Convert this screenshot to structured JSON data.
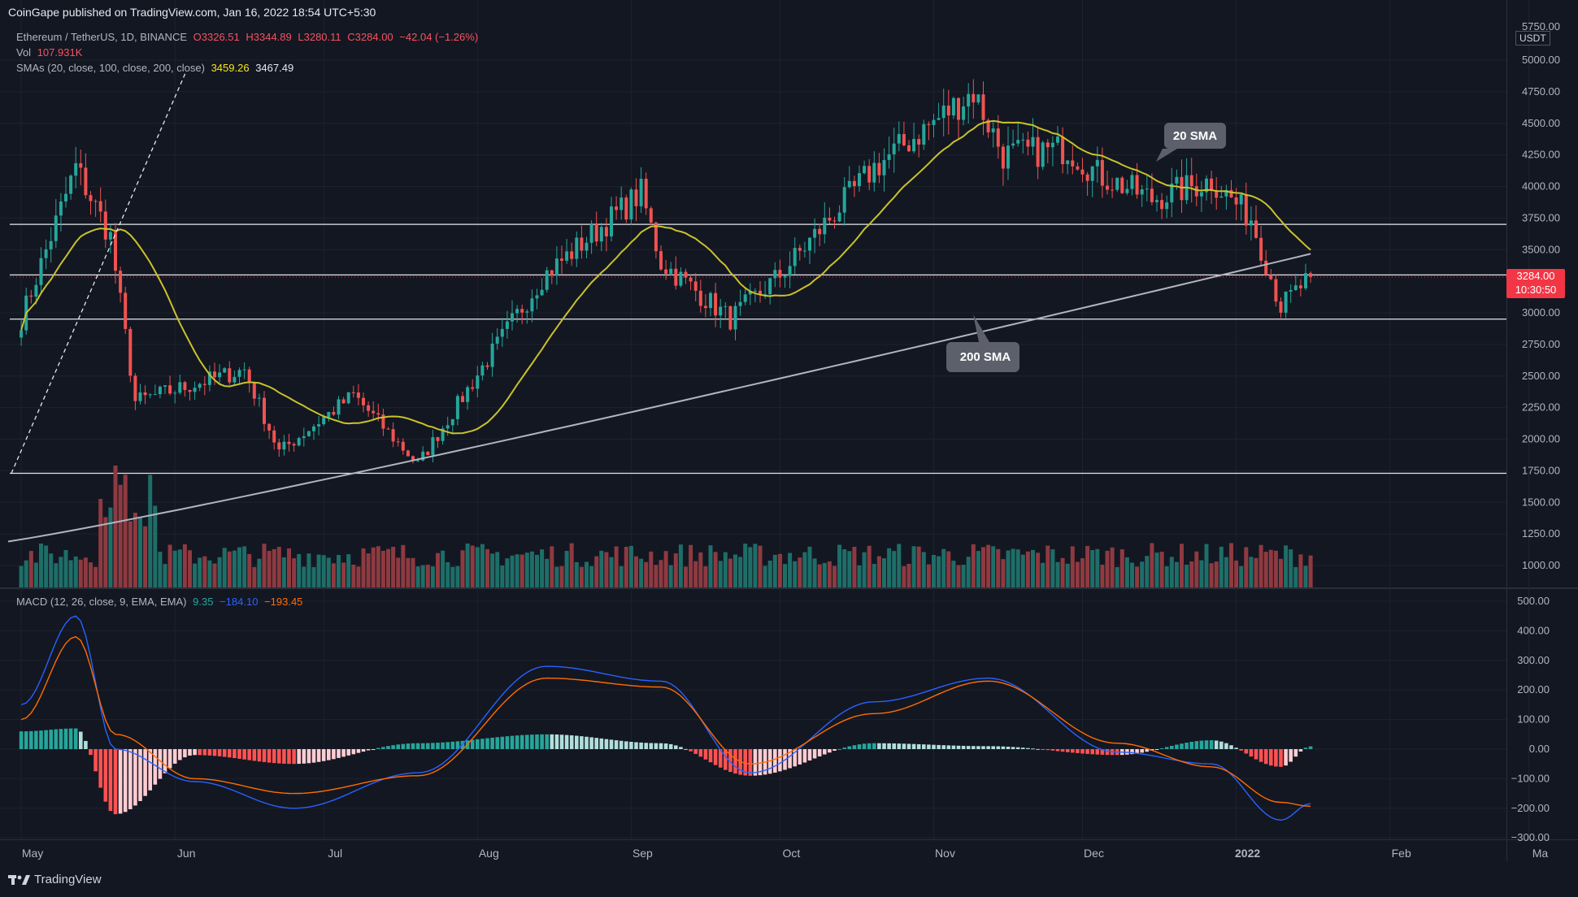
{
  "header": {
    "publisher": "CoinGape published on TradingView.com, Jan 16, 2022 18:54 UTC+5:30"
  },
  "legend": {
    "symbol": "Ethereum / TetherUS, 1D, BINANCE",
    "open": "O3326.51",
    "high": "H3344.89",
    "low": "L3280.11",
    "close": "C3284.00",
    "change": "−42.04 (−1.26%)",
    "vol_label": "Vol",
    "vol_value": "107.931K",
    "sma_label": "SMAs (20, close, 100, close, 200, close)",
    "sma20_value": "3459.26",
    "sma200_value": "3467.49",
    "macd_label": "MACD (12, 26, close, 9, EMA, EMA)",
    "macd_hist": "9.35",
    "macd_line": "−184.10",
    "macd_signal": "−193.45"
  },
  "price_axis": {
    "currency": "USDT",
    "current_price": "3284.00",
    "countdown": "10:30:50",
    "ticks": [
      "5750.00",
      "5000.00",
      "4750.00",
      "4500.00",
      "4250.00",
      "4000.00",
      "3750.00",
      "3500.00",
      "3000.00",
      "2750.00",
      "2500.00",
      "2250.00",
      "2000.00",
      "1750.00",
      "1500.00",
      "1250.00",
      "1000.00"
    ]
  },
  "macd_axis": {
    "ticks": [
      "500.00",
      "400.00",
      "300.00",
      "200.00",
      "100.00",
      "0.00",
      "−100.00",
      "−200.00",
      "−300.00"
    ]
  },
  "time_axis": {
    "labels": [
      "May",
      "Jun",
      "Jul",
      "Aug",
      "Sep",
      "Oct",
      "Nov",
      "Dec",
      "2022",
      "Feb",
      "Ma"
    ]
  },
  "annotations": {
    "sma20_callout": "20 SMA",
    "sma200_callout": "200 SMA"
  },
  "brand": {
    "name": "TradingView"
  },
  "colors": {
    "background": "#131722",
    "bull": "#26a69a",
    "bear": "#ef5350",
    "sma20": "#c9c22b",
    "sma200": "#b2b5be",
    "macd": "#2962ff",
    "signal": "#ff6d00",
    "price_tag": "#f23645"
  },
  "chart_data": [
    {
      "type": "line",
      "title": "Ethereum / TetherUS, 1D, BINANCE",
      "xlabel": "",
      "ylabel": "USDT",
      "ylim": [
        950,
        5800
      ],
      "grid": true,
      "x": [
        "2021-05-01",
        "2021-05-12",
        "2021-05-19",
        "2021-05-24",
        "2021-06-15",
        "2021-06-22",
        "2021-07-07",
        "2021-07-20",
        "2021-08-14",
        "2021-09-03",
        "2021-09-07",
        "2021-09-21",
        "2021-10-01",
        "2021-10-20",
        "2021-11-09",
        "2021-11-15",
        "2021-11-28",
        "2021-12-04",
        "2021-12-15",
        "2021-12-27",
        "2022-01-04",
        "2022-01-10",
        "2022-01-16"
      ],
      "series": [
        {
          "values": [
            2950,
            4150,
            3600,
            2300,
            2550,
            1900,
            2350,
            1800,
            3280,
            3950,
            3400,
            2950,
            3300,
            4150,
            4750,
            4250,
            4300,
            4100,
            3900,
            4050,
            3750,
            3050,
            3284
          ]
        }
      ],
      "horizontal_levels": [
        3700,
        3300,
        2950,
        1730
      ],
      "sma20_last": 3459.26,
      "sma200_last": 3467.49
    },
    {
      "type": "bar",
      "title": "Vol",
      "last_value": "107.931K"
    },
    {
      "type": "line",
      "title": "MACD (12, 26, close, 9, EMA, EMA)",
      "ylim": [
        -300,
        500
      ],
      "x": [
        "2021-05-01",
        "2021-05-12",
        "2021-05-20",
        "2021-06-05",
        "2021-06-25",
        "2021-07-20",
        "2021-08-15",
        "2021-09-07",
        "2021-09-25",
        "2021-10-20",
        "2021-11-12",
        "2021-12-08",
        "2021-12-27",
        "2022-01-10",
        "2022-01-16"
      ],
      "series": [
        {
          "name": "MACD",
          "values": [
            150,
            450,
            0,
            -110,
            -200,
            -80,
            280,
            230,
            -80,
            160,
            240,
            -10,
            -50,
            -240,
            -184.1
          ]
        },
        {
          "name": "Signal",
          "values": [
            100,
            380,
            50,
            -100,
            -150,
            -90,
            240,
            210,
            -50,
            120,
            230,
            20,
            -60,
            -180,
            -193.45
          ]
        },
        {
          "name": "Histogram",
          "values": [
            60,
            70,
            -220,
            -20,
            -50,
            20,
            50,
            20,
            -90,
            20,
            10,
            -20,
            30,
            -60,
            9.35
          ]
        }
      ]
    }
  ]
}
